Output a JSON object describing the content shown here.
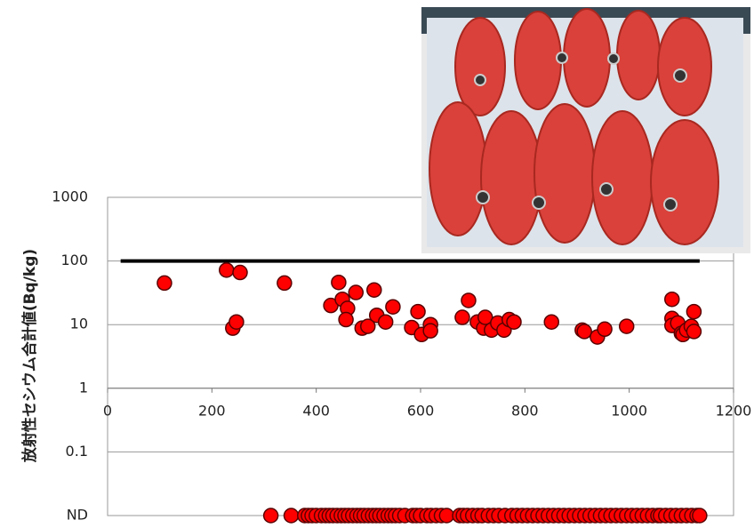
{
  "chart_data": {
    "type": "scatter",
    "y_label": "放射性セシウム合計値(Bq/kg)",
    "xlim": [
      0,
      1200
    ],
    "xticks": [
      0,
      200,
      400,
      600,
      800,
      1000,
      1200
    ],
    "ylim": [
      0.01,
      1000
    ],
    "yticks": [
      {
        "value": 0.01,
        "label": "ND"
      },
      0.1,
      1,
      10,
      100,
      1000
    ],
    "y_log": true,
    "x_axis_at": 1,
    "grid": true,
    "limit_line": {
      "y": 100,
      "x": [
        25,
        1135
      ],
      "color": "#000000"
    },
    "series": [
      {
        "color": "#ff0000",
        "x": [
          109,
          228,
          254,
          240,
          247,
          339,
          443,
          428,
          450,
          460,
          457,
          476,
          488,
          499,
          511,
          516,
          533,
          547,
          595,
          583,
          602,
          619,
          619,
          692,
          680,
          709,
          721,
          724,
          736,
          748,
          760,
          770,
          779,
          851,
          910,
          914,
          939,
          953,
          995,
          1082,
          1082,
          1082,
          1093,
          1100,
          1103,
          1110,
          1119,
          1124,
          1124
        ],
        "values": [
          45,
          72,
          66,
          8.8,
          11,
          45,
          46,
          20,
          25,
          18,
          12,
          32,
          8.8,
          9.4,
          35,
          14,
          11,
          19,
          16,
          9,
          7,
          10,
          8,
          24,
          13,
          11,
          8.8,
          13,
          8.2,
          10.6,
          8.2,
          12,
          11,
          11,
          8.2,
          7.8,
          6.4,
          8.5,
          9.4,
          25,
          12.5,
          9.7,
          10.6,
          7.3,
          7,
          8.2,
          9.4,
          16,
          7.8
        ]
      },
      {
        "color": "#ff0000",
        "x": [
          313,
          352,
          378,
          385,
          392,
          400,
          410,
          418,
          425,
          432,
          440,
          448,
          455,
          462,
          470,
          478,
          485,
          492,
          500,
          508,
          515,
          522,
          530,
          538,
          545,
          552,
          560,
          570,
          585,
          592,
          600,
          612,
          620,
          630,
          640,
          650,
          675,
          682,
          690,
          700,
          710,
          718,
          730,
          740,
          750,
          762,
          775,
          785,
          795,
          805,
          815,
          825,
          835,
          845,
          855,
          865,
          875,
          885,
          895,
          905,
          915,
          925,
          935,
          945,
          955,
          965,
          975,
          985,
          995,
          1005,
          1015,
          1025,
          1035,
          1045,
          1055,
          1060,
          1070,
          1080,
          1090,
          1100,
          1110,
          1120,
          1130,
          1135
        ],
        "values": [
          0.01,
          0.01,
          0.01,
          0.01,
          0.01,
          0.01,
          0.01,
          0.01,
          0.01,
          0.01,
          0.01,
          0.01,
          0.01,
          0.01,
          0.01,
          0.01,
          0.01,
          0.01,
          0.01,
          0.01,
          0.01,
          0.01,
          0.01,
          0.01,
          0.01,
          0.01,
          0.01,
          0.01,
          0.01,
          0.01,
          0.01,
          0.01,
          0.01,
          0.01,
          0.01,
          0.01,
          0.01,
          0.01,
          0.01,
          0.01,
          0.01,
          0.01,
          0.01,
          0.01,
          0.01,
          0.01,
          0.01,
          0.01,
          0.01,
          0.01,
          0.01,
          0.01,
          0.01,
          0.01,
          0.01,
          0.01,
          0.01,
          0.01,
          0.01,
          0.01,
          0.01,
          0.01,
          0.01,
          0.01,
          0.01,
          0.01,
          0.01,
          0.01,
          0.01,
          0.01,
          0.01,
          0.01,
          0.01,
          0.01,
          0.01,
          0.01,
          0.01,
          0.01,
          0.01,
          0.01,
          0.01,
          0.01,
          0.01,
          0.01
        ]
      }
    ]
  }
}
